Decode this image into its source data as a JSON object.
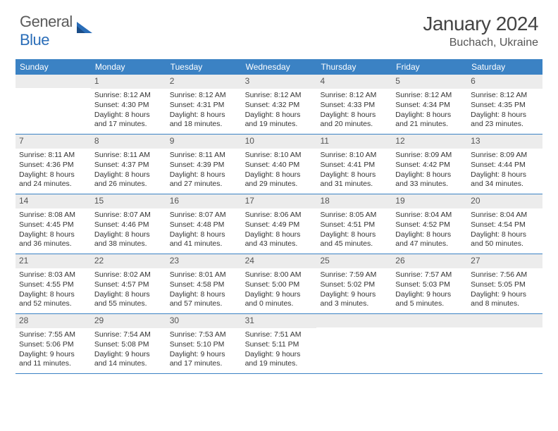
{
  "logo": {
    "text1": "General",
    "text2": "Blue"
  },
  "title": "January 2024",
  "location": "Buchach, Ukraine",
  "colors": {
    "header_bg": "#3b82c4",
    "header_text": "#ffffff",
    "daynum_bg": "#ececec",
    "daynum_text": "#555555",
    "body_text": "#333333",
    "rule": "#3b82c4",
    "logo_gray": "#5a5a5a",
    "logo_blue": "#2a6db8"
  },
  "weekdays": [
    "Sunday",
    "Monday",
    "Tuesday",
    "Wednesday",
    "Thursday",
    "Friday",
    "Saturday"
  ],
  "weeks": [
    [
      {
        "n": "",
        "sr": "",
        "ss": "",
        "dl1": "",
        "dl2": ""
      },
      {
        "n": "1",
        "sr": "Sunrise: 8:12 AM",
        "ss": "Sunset: 4:30 PM",
        "dl1": "Daylight: 8 hours",
        "dl2": "and 17 minutes."
      },
      {
        "n": "2",
        "sr": "Sunrise: 8:12 AM",
        "ss": "Sunset: 4:31 PM",
        "dl1": "Daylight: 8 hours",
        "dl2": "and 18 minutes."
      },
      {
        "n": "3",
        "sr": "Sunrise: 8:12 AM",
        "ss": "Sunset: 4:32 PM",
        "dl1": "Daylight: 8 hours",
        "dl2": "and 19 minutes."
      },
      {
        "n": "4",
        "sr": "Sunrise: 8:12 AM",
        "ss": "Sunset: 4:33 PM",
        "dl1": "Daylight: 8 hours",
        "dl2": "and 20 minutes."
      },
      {
        "n": "5",
        "sr": "Sunrise: 8:12 AM",
        "ss": "Sunset: 4:34 PM",
        "dl1": "Daylight: 8 hours",
        "dl2": "and 21 minutes."
      },
      {
        "n": "6",
        "sr": "Sunrise: 8:12 AM",
        "ss": "Sunset: 4:35 PM",
        "dl1": "Daylight: 8 hours",
        "dl2": "and 23 minutes."
      }
    ],
    [
      {
        "n": "7",
        "sr": "Sunrise: 8:11 AM",
        "ss": "Sunset: 4:36 PM",
        "dl1": "Daylight: 8 hours",
        "dl2": "and 24 minutes."
      },
      {
        "n": "8",
        "sr": "Sunrise: 8:11 AM",
        "ss": "Sunset: 4:37 PM",
        "dl1": "Daylight: 8 hours",
        "dl2": "and 26 minutes."
      },
      {
        "n": "9",
        "sr": "Sunrise: 8:11 AM",
        "ss": "Sunset: 4:39 PM",
        "dl1": "Daylight: 8 hours",
        "dl2": "and 27 minutes."
      },
      {
        "n": "10",
        "sr": "Sunrise: 8:10 AM",
        "ss": "Sunset: 4:40 PM",
        "dl1": "Daylight: 8 hours",
        "dl2": "and 29 minutes."
      },
      {
        "n": "11",
        "sr": "Sunrise: 8:10 AM",
        "ss": "Sunset: 4:41 PM",
        "dl1": "Daylight: 8 hours",
        "dl2": "and 31 minutes."
      },
      {
        "n": "12",
        "sr": "Sunrise: 8:09 AM",
        "ss": "Sunset: 4:42 PM",
        "dl1": "Daylight: 8 hours",
        "dl2": "and 33 minutes."
      },
      {
        "n": "13",
        "sr": "Sunrise: 8:09 AM",
        "ss": "Sunset: 4:44 PM",
        "dl1": "Daylight: 8 hours",
        "dl2": "and 34 minutes."
      }
    ],
    [
      {
        "n": "14",
        "sr": "Sunrise: 8:08 AM",
        "ss": "Sunset: 4:45 PM",
        "dl1": "Daylight: 8 hours",
        "dl2": "and 36 minutes."
      },
      {
        "n": "15",
        "sr": "Sunrise: 8:07 AM",
        "ss": "Sunset: 4:46 PM",
        "dl1": "Daylight: 8 hours",
        "dl2": "and 38 minutes."
      },
      {
        "n": "16",
        "sr": "Sunrise: 8:07 AM",
        "ss": "Sunset: 4:48 PM",
        "dl1": "Daylight: 8 hours",
        "dl2": "and 41 minutes."
      },
      {
        "n": "17",
        "sr": "Sunrise: 8:06 AM",
        "ss": "Sunset: 4:49 PM",
        "dl1": "Daylight: 8 hours",
        "dl2": "and 43 minutes."
      },
      {
        "n": "18",
        "sr": "Sunrise: 8:05 AM",
        "ss": "Sunset: 4:51 PM",
        "dl1": "Daylight: 8 hours",
        "dl2": "and 45 minutes."
      },
      {
        "n": "19",
        "sr": "Sunrise: 8:04 AM",
        "ss": "Sunset: 4:52 PM",
        "dl1": "Daylight: 8 hours",
        "dl2": "and 47 minutes."
      },
      {
        "n": "20",
        "sr": "Sunrise: 8:04 AM",
        "ss": "Sunset: 4:54 PM",
        "dl1": "Daylight: 8 hours",
        "dl2": "and 50 minutes."
      }
    ],
    [
      {
        "n": "21",
        "sr": "Sunrise: 8:03 AM",
        "ss": "Sunset: 4:55 PM",
        "dl1": "Daylight: 8 hours",
        "dl2": "and 52 minutes."
      },
      {
        "n": "22",
        "sr": "Sunrise: 8:02 AM",
        "ss": "Sunset: 4:57 PM",
        "dl1": "Daylight: 8 hours",
        "dl2": "and 55 minutes."
      },
      {
        "n": "23",
        "sr": "Sunrise: 8:01 AM",
        "ss": "Sunset: 4:58 PM",
        "dl1": "Daylight: 8 hours",
        "dl2": "and 57 minutes."
      },
      {
        "n": "24",
        "sr": "Sunrise: 8:00 AM",
        "ss": "Sunset: 5:00 PM",
        "dl1": "Daylight: 9 hours",
        "dl2": "and 0 minutes."
      },
      {
        "n": "25",
        "sr": "Sunrise: 7:59 AM",
        "ss": "Sunset: 5:02 PM",
        "dl1": "Daylight: 9 hours",
        "dl2": "and 3 minutes."
      },
      {
        "n": "26",
        "sr": "Sunrise: 7:57 AM",
        "ss": "Sunset: 5:03 PM",
        "dl1": "Daylight: 9 hours",
        "dl2": "and 5 minutes."
      },
      {
        "n": "27",
        "sr": "Sunrise: 7:56 AM",
        "ss": "Sunset: 5:05 PM",
        "dl1": "Daylight: 9 hours",
        "dl2": "and 8 minutes."
      }
    ],
    [
      {
        "n": "28",
        "sr": "Sunrise: 7:55 AM",
        "ss": "Sunset: 5:06 PM",
        "dl1": "Daylight: 9 hours",
        "dl2": "and 11 minutes."
      },
      {
        "n": "29",
        "sr": "Sunrise: 7:54 AM",
        "ss": "Sunset: 5:08 PM",
        "dl1": "Daylight: 9 hours",
        "dl2": "and 14 minutes."
      },
      {
        "n": "30",
        "sr": "Sunrise: 7:53 AM",
        "ss": "Sunset: 5:10 PM",
        "dl1": "Daylight: 9 hours",
        "dl2": "and 17 minutes."
      },
      {
        "n": "31",
        "sr": "Sunrise: 7:51 AM",
        "ss": "Sunset: 5:11 PM",
        "dl1": "Daylight: 9 hours",
        "dl2": "and 19 minutes."
      },
      {
        "n": "",
        "sr": "",
        "ss": "",
        "dl1": "",
        "dl2": ""
      },
      {
        "n": "",
        "sr": "",
        "ss": "",
        "dl1": "",
        "dl2": ""
      },
      {
        "n": "",
        "sr": "",
        "ss": "",
        "dl1": "",
        "dl2": ""
      }
    ]
  ]
}
